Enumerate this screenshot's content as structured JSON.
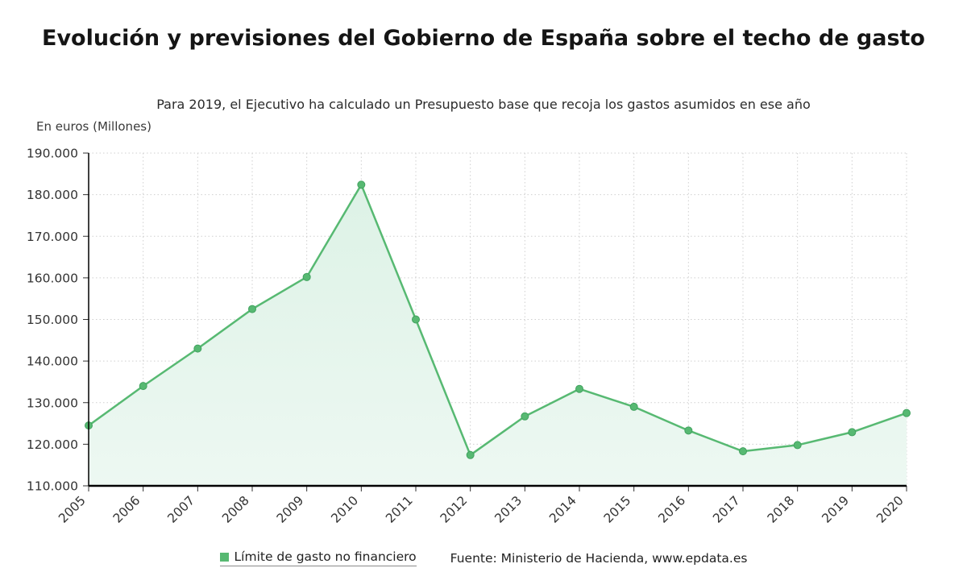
{
  "header": {
    "title": "Evolución y previsiones del Gobierno de España sobre el techo de gasto",
    "subtitle": "Para 2019, el Ejecutivo ha calculado un Presupuesto base que recoja los gastos asumidos en ese año",
    "unit_label": "En euros (Millones)"
  },
  "chart_data": {
    "type": "area",
    "title": "Evolución y previsiones del Gobierno de España sobre el techo de gasto",
    "subtitle": "Para 2019, el Ejecutivo ha calculado un Presupuesto base que recoja los gastos asumidos en ese año",
    "ylabel": "En euros (Millones)",
    "xlabel": "",
    "categories": [
      "2005",
      "2006",
      "2007",
      "2008",
      "2009",
      "2010",
      "2011",
      "2012",
      "2013",
      "2014",
      "2015",
      "2016",
      "2017",
      "2018",
      "2019",
      "2020"
    ],
    "series": [
      {
        "name": "Límite de gasto no financiero",
        "values": [
          124500,
          134000,
          143000,
          152500,
          160200,
          182400,
          150000,
          117400,
          126700,
          133300,
          129000,
          123300,
          118300,
          119800,
          122900,
          127500
        ]
      }
    ],
    "ylim": [
      110000,
      190000
    ],
    "ytick_step": 10000,
    "ytick_labels": [
      "110.000",
      "120.000",
      "130.000",
      "140.000",
      "150.000",
      "160.000",
      "170.000",
      "180.000",
      "190.000"
    ],
    "grid": true,
    "legend_position": "bottom",
    "colors": {
      "line": "#57b972",
      "marker_stroke": "#41a25f",
      "area_top": "#ddf2e6",
      "area_bottom": "#edf8f2"
    }
  },
  "footer": {
    "legend_label": "Límite de gasto no financiero",
    "source": "Fuente: Ministerio de Hacienda, www.epdata.es"
  }
}
